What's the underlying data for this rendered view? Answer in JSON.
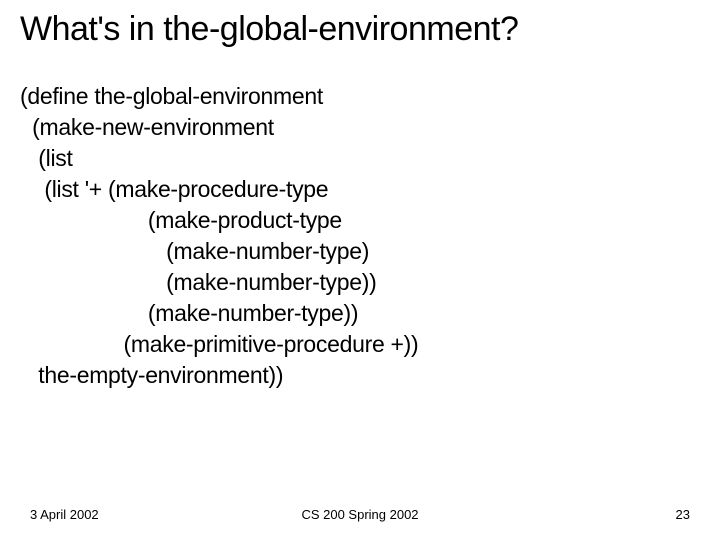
{
  "slide": {
    "title": "What's in the-global-environment?",
    "title_fontsize": 34,
    "title_color": "#000000",
    "background_color": "#ffffff",
    "code": {
      "lines": [
        "(define the-global-environment",
        "  (make-new-environment",
        "   (list",
        "    (list '+ (make-procedure-type",
        "                     (make-product-type",
        "                        (make-number-type)",
        "                        (make-number-type))",
        "                     (make-number-type))",
        "                 (make-primitive-procedure +))",
        "   the-empty-environment))"
      ],
      "fontsize": 23,
      "color": "#000000"
    }
  },
  "footer": {
    "date": "3 April 2002",
    "course": "CS 200 Spring 2002",
    "page_number": "23",
    "fontsize": 13,
    "color": "#000000"
  }
}
